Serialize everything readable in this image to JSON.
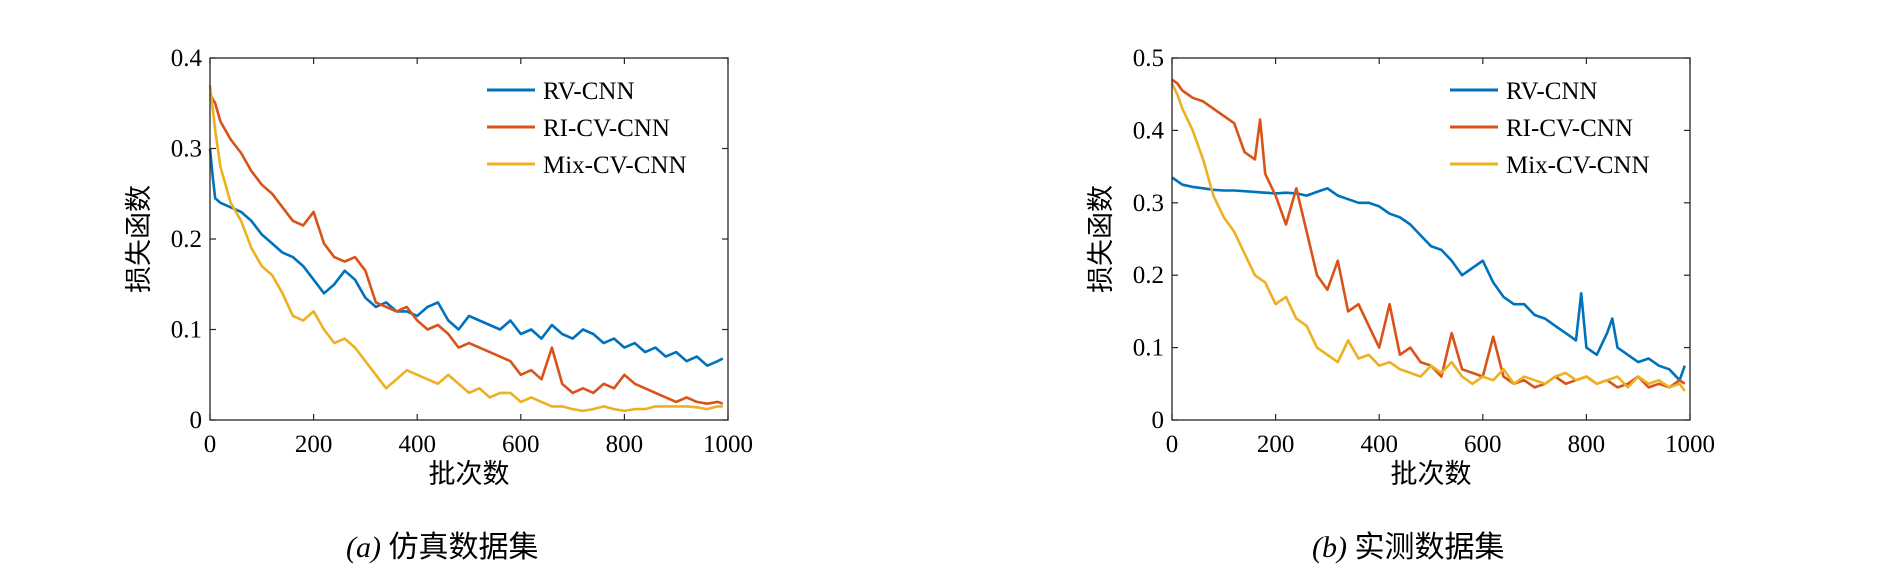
{
  "colors": {
    "rv": "#0072BD",
    "ri": "#D95319",
    "mix": "#EDB120",
    "axis": "#262626"
  },
  "captions": [
    {
      "label": "(a)",
      "text": "仿真数据集"
    },
    {
      "label": "(b)",
      "text": "实测数据集"
    }
  ],
  "chart_data": [
    {
      "type": "line",
      "title": "",
      "xlabel": "批次数",
      "ylabel": "损失函数",
      "xlim": [
        0,
        1000
      ],
      "ylim": [
        0,
        0.4
      ],
      "xticks": [
        0,
        200,
        400,
        600,
        800,
        1000
      ],
      "yticks": [
        0,
        0.1,
        0.2,
        0.3,
        0.4
      ],
      "ytick_labels": [
        "0",
        "0.1",
        "0.2",
        "0.3",
        "0.4"
      ],
      "grid": false,
      "legend_position": "top-right",
      "series": [
        {
          "name": "RV-CNN",
          "color": "#0072BD",
          "x": [
            0,
            5,
            10,
            20,
            40,
            60,
            80,
            100,
            120,
            140,
            160,
            180,
            200,
            220,
            240,
            260,
            280,
            300,
            320,
            340,
            360,
            380,
            400,
            420,
            440,
            460,
            480,
            500,
            520,
            540,
            560,
            580,
            600,
            620,
            640,
            660,
            680,
            700,
            720,
            740,
            760,
            780,
            800,
            820,
            840,
            860,
            880,
            900,
            920,
            940,
            960,
            980,
            990
          ],
          "y": [
            0.3,
            0.27,
            0.245,
            0.24,
            0.235,
            0.23,
            0.22,
            0.205,
            0.195,
            0.185,
            0.18,
            0.17,
            0.155,
            0.14,
            0.15,
            0.165,
            0.155,
            0.135,
            0.125,
            0.13,
            0.12,
            0.12,
            0.115,
            0.125,
            0.13,
            0.11,
            0.1,
            0.115,
            0.11,
            0.105,
            0.1,
            0.11,
            0.095,
            0.1,
            0.09,
            0.105,
            0.095,
            0.09,
            0.1,
            0.095,
            0.085,
            0.09,
            0.08,
            0.085,
            0.075,
            0.08,
            0.07,
            0.075,
            0.065,
            0.07,
            0.06,
            0.065,
            0.068
          ]
        },
        {
          "name": "RI-CV-CNN",
          "color": "#D95319",
          "x": [
            0,
            10,
            20,
            40,
            60,
            80,
            100,
            120,
            140,
            160,
            180,
            200,
            220,
            240,
            260,
            280,
            300,
            320,
            340,
            360,
            380,
            400,
            420,
            440,
            460,
            480,
            500,
            520,
            540,
            560,
            580,
            600,
            620,
            640,
            660,
            680,
            700,
            720,
            740,
            760,
            780,
            800,
            820,
            840,
            860,
            880,
            900,
            920,
            940,
            960,
            980,
            990
          ],
          "y": [
            0.36,
            0.35,
            0.33,
            0.31,
            0.295,
            0.275,
            0.26,
            0.25,
            0.235,
            0.22,
            0.215,
            0.23,
            0.195,
            0.18,
            0.175,
            0.18,
            0.165,
            0.13,
            0.125,
            0.12,
            0.125,
            0.11,
            0.1,
            0.105,
            0.095,
            0.08,
            0.085,
            0.08,
            0.075,
            0.07,
            0.065,
            0.05,
            0.055,
            0.045,
            0.08,
            0.04,
            0.03,
            0.035,
            0.03,
            0.04,
            0.035,
            0.05,
            0.04,
            0.035,
            0.03,
            0.025,
            0.02,
            0.025,
            0.02,
            0.018,
            0.02,
            0.018
          ]
        },
        {
          "name": "Mix-CV-CNN",
          "color": "#EDB120",
          "x": [
            0,
            10,
            20,
            40,
            60,
            80,
            100,
            120,
            140,
            160,
            180,
            200,
            220,
            240,
            260,
            280,
            300,
            320,
            340,
            360,
            380,
            400,
            420,
            440,
            460,
            480,
            500,
            520,
            540,
            560,
            580,
            600,
            620,
            640,
            660,
            680,
            700,
            720,
            740,
            760,
            780,
            800,
            820,
            840,
            860,
            880,
            900,
            920,
            940,
            960,
            980,
            990
          ],
          "y": [
            0.37,
            0.32,
            0.28,
            0.24,
            0.22,
            0.19,
            0.17,
            0.16,
            0.14,
            0.115,
            0.11,
            0.12,
            0.1,
            0.085,
            0.09,
            0.08,
            0.065,
            0.05,
            0.035,
            0.045,
            0.055,
            0.05,
            0.045,
            0.04,
            0.05,
            0.04,
            0.03,
            0.035,
            0.025,
            0.03,
            0.03,
            0.02,
            0.025,
            0.02,
            0.015,
            0.015,
            0.012,
            0.01,
            0.012,
            0.015,
            0.012,
            0.01,
            0.012,
            0.012,
            0.015,
            0.015,
            0.015,
            0.015,
            0.014,
            0.012,
            0.015,
            0.015
          ]
        }
      ]
    },
    {
      "type": "line",
      "title": "",
      "xlabel": "批次数",
      "ylabel": "损失函数",
      "xlim": [
        0,
        1000
      ],
      "ylim": [
        0,
        0.5
      ],
      "xticks": [
        0,
        200,
        400,
        600,
        800,
        1000
      ],
      "yticks": [
        0,
        0.1,
        0.2,
        0.3,
        0.4,
        0.5
      ],
      "ytick_labels": [
        "0",
        "0.1",
        "0.2",
        "0.3",
        "0.4",
        "0.5"
      ],
      "grid": false,
      "legend_position": "top-right",
      "series": [
        {
          "name": "RV-CNN",
          "color": "#0072BD",
          "x": [
            0,
            10,
            20,
            40,
            60,
            80,
            100,
            120,
            140,
            160,
            180,
            200,
            220,
            240,
            260,
            280,
            300,
            320,
            340,
            360,
            380,
            400,
            420,
            440,
            460,
            480,
            500,
            520,
            540,
            560,
            580,
            600,
            620,
            640,
            660,
            680,
            700,
            720,
            740,
            760,
            780,
            790,
            800,
            820,
            840,
            850,
            860,
            880,
            900,
            920,
            940,
            960,
            980,
            990
          ],
          "y": [
            0.335,
            0.33,
            0.325,
            0.322,
            0.32,
            0.318,
            0.317,
            0.317,
            0.316,
            0.315,
            0.314,
            0.313,
            0.314,
            0.313,
            0.31,
            0.315,
            0.32,
            0.31,
            0.305,
            0.3,
            0.3,
            0.295,
            0.285,
            0.28,
            0.27,
            0.255,
            0.24,
            0.235,
            0.22,
            0.2,
            0.21,
            0.22,
            0.19,
            0.17,
            0.16,
            0.16,
            0.145,
            0.14,
            0.13,
            0.12,
            0.11,
            0.175,
            0.1,
            0.09,
            0.12,
            0.14,
            0.1,
            0.09,
            0.08,
            0.085,
            0.075,
            0.07,
            0.055,
            0.075
          ]
        },
        {
          "name": "RI-CV-CNN",
          "color": "#D95319",
          "x": [
            0,
            10,
            20,
            40,
            60,
            80,
            100,
            120,
            140,
            160,
            170,
            180,
            200,
            220,
            240,
            260,
            280,
            300,
            320,
            340,
            360,
            380,
            400,
            420,
            440,
            460,
            480,
            500,
            520,
            540,
            560,
            580,
            600,
            620,
            640,
            660,
            680,
            700,
            720,
            740,
            760,
            780,
            800,
            820,
            840,
            860,
            880,
            900,
            920,
            940,
            960,
            980,
            990
          ],
          "y": [
            0.47,
            0.465,
            0.455,
            0.445,
            0.44,
            0.43,
            0.42,
            0.41,
            0.37,
            0.36,
            0.415,
            0.34,
            0.31,
            0.27,
            0.32,
            0.26,
            0.2,
            0.18,
            0.22,
            0.15,
            0.16,
            0.13,
            0.1,
            0.16,
            0.09,
            0.1,
            0.08,
            0.075,
            0.06,
            0.12,
            0.07,
            0.065,
            0.06,
            0.115,
            0.06,
            0.05,
            0.055,
            0.045,
            0.05,
            0.06,
            0.05,
            0.055,
            0.06,
            0.05,
            0.055,
            0.045,
            0.05,
            0.06,
            0.045,
            0.05,
            0.045,
            0.055,
            0.05
          ]
        },
        {
          "name": "Mix-CV-CNN",
          "color": "#EDB120",
          "x": [
            0,
            10,
            20,
            40,
            60,
            80,
            100,
            120,
            140,
            160,
            180,
            200,
            220,
            240,
            260,
            280,
            300,
            320,
            340,
            360,
            380,
            400,
            420,
            440,
            460,
            480,
            500,
            520,
            540,
            560,
            580,
            600,
            620,
            640,
            660,
            680,
            700,
            720,
            740,
            760,
            780,
            800,
            820,
            840,
            860,
            880,
            900,
            920,
            940,
            960,
            980,
            990
          ],
          "y": [
            0.465,
            0.45,
            0.43,
            0.4,
            0.36,
            0.31,
            0.28,
            0.26,
            0.23,
            0.2,
            0.19,
            0.16,
            0.17,
            0.14,
            0.13,
            0.1,
            0.09,
            0.08,
            0.11,
            0.085,
            0.09,
            0.075,
            0.08,
            0.07,
            0.065,
            0.06,
            0.075,
            0.065,
            0.08,
            0.06,
            0.05,
            0.06,
            0.055,
            0.07,
            0.05,
            0.06,
            0.055,
            0.05,
            0.06,
            0.065,
            0.055,
            0.06,
            0.05,
            0.055,
            0.06,
            0.045,
            0.06,
            0.05,
            0.055,
            0.045,
            0.05,
            0.04
          ]
        }
      ]
    }
  ]
}
